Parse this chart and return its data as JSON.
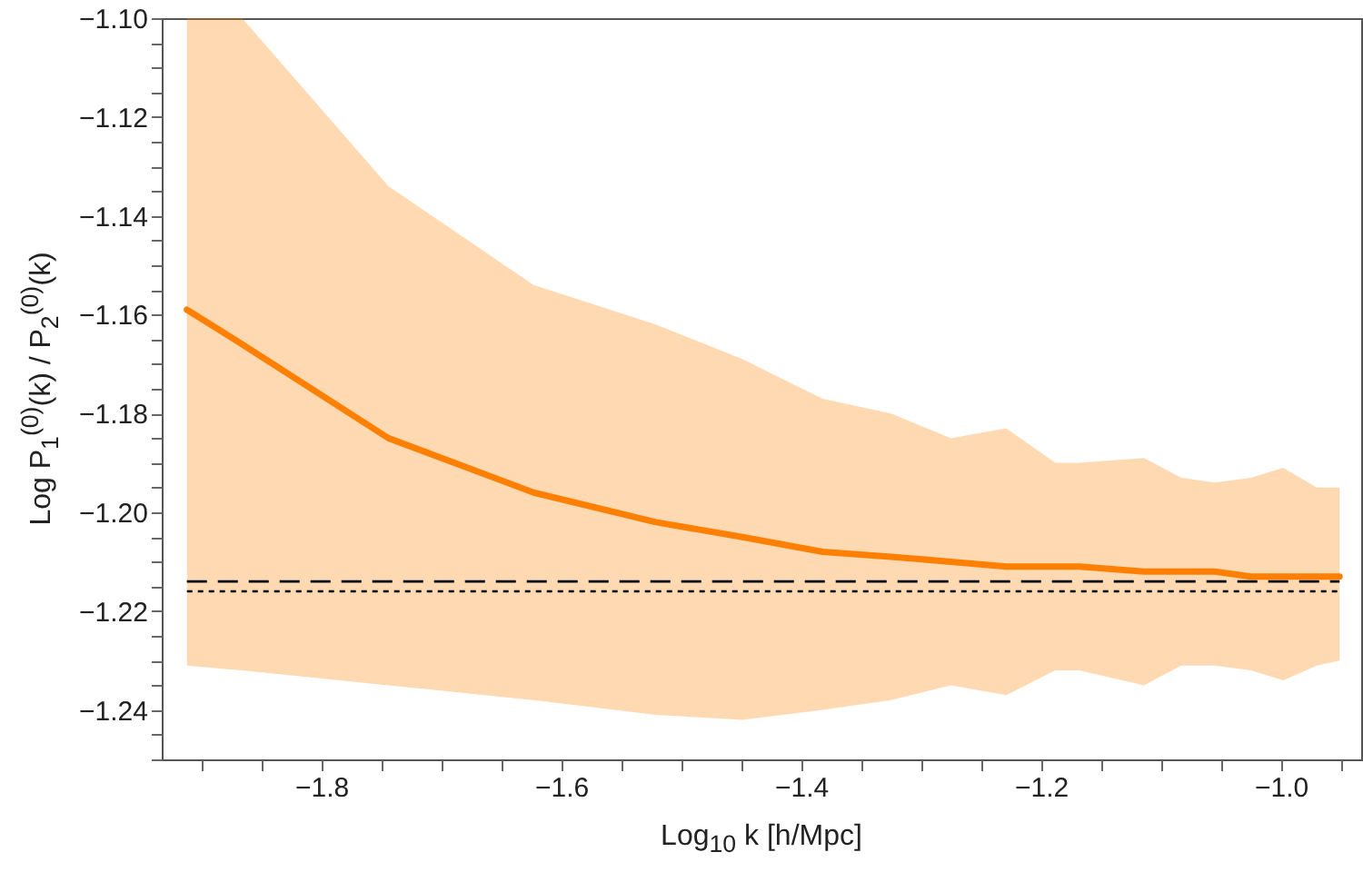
{
  "chart_data": {
    "type": "line",
    "xlabel": "Log$_{10}$ k [h/Mpc]",
    "ylabel": "Log P$_{1}$$^{(0)}$(k) / P$_{2}$$^{(0)}$(k)",
    "xlim": [
      -1.933,
      -0.933
    ],
    "ylim": [
      -1.25,
      -1.1
    ],
    "xticks": [
      {
        "value": -1.9,
        "label": null
      },
      {
        "value": -1.85,
        "label": null
      },
      {
        "value": -1.8,
        "label": "−1.8"
      },
      {
        "value": -1.75,
        "label": null
      },
      {
        "value": -1.7,
        "label": null
      },
      {
        "value": -1.65,
        "label": null
      },
      {
        "value": -1.6,
        "label": "−1.6"
      },
      {
        "value": -1.55,
        "label": null
      },
      {
        "value": -1.5,
        "label": null
      },
      {
        "value": -1.45,
        "label": null
      },
      {
        "value": -1.4,
        "label": "−1.4"
      },
      {
        "value": -1.35,
        "label": null
      },
      {
        "value": -1.3,
        "label": null
      },
      {
        "value": -1.25,
        "label": null
      },
      {
        "value": -1.2,
        "label": "−1.2"
      },
      {
        "value": -1.15,
        "label": null
      },
      {
        "value": -1.1,
        "label": null
      },
      {
        "value": -1.05,
        "label": null
      },
      {
        "value": -1.0,
        "label": "−1.0"
      },
      {
        "value": -0.95,
        "label": null
      }
    ],
    "yticks": [
      {
        "value": -1.1,
        "label": "−1.10"
      },
      {
        "value": -1.105,
        "label": null
      },
      {
        "value": -1.11,
        "label": null
      },
      {
        "value": -1.115,
        "label": null
      },
      {
        "value": -1.12,
        "label": "−1.12"
      },
      {
        "value": -1.125,
        "label": null
      },
      {
        "value": -1.13,
        "label": null
      },
      {
        "value": -1.135,
        "label": null
      },
      {
        "value": -1.14,
        "label": "−1.14"
      },
      {
        "value": -1.145,
        "label": null
      },
      {
        "value": -1.15,
        "label": null
      },
      {
        "value": -1.155,
        "label": null
      },
      {
        "value": -1.16,
        "label": "−1.16"
      },
      {
        "value": -1.165,
        "label": null
      },
      {
        "value": -1.17,
        "label": null
      },
      {
        "value": -1.175,
        "label": null
      },
      {
        "value": -1.18,
        "label": "−1.18"
      },
      {
        "value": -1.185,
        "label": null
      },
      {
        "value": -1.19,
        "label": null
      },
      {
        "value": -1.195,
        "label": null
      },
      {
        "value": -1.2,
        "label": "−1.20"
      },
      {
        "value": -1.205,
        "label": null
      },
      {
        "value": -1.21,
        "label": null
      },
      {
        "value": -1.215,
        "label": null
      },
      {
        "value": -1.22,
        "label": "−1.22"
      },
      {
        "value": -1.225,
        "label": null
      },
      {
        "value": -1.23,
        "label": null
      },
      {
        "value": -1.235,
        "label": null
      },
      {
        "value": -1.24,
        "label": "−1.24"
      },
      {
        "value": -1.245,
        "label": null
      },
      {
        "value": -1.25,
        "label": null
      }
    ],
    "grid": false,
    "marker": "none",
    "series": [
      {
        "type": "line",
        "color": "#ff8000",
        "x": [
          -1.912,
          -1.866,
          -1.744,
          -1.623,
          -1.521,
          -1.449,
          -1.382,
          -1.325,
          -1.275,
          -1.229,
          -1.188,
          -1.168,
          -1.114,
          -1.083,
          -1.055,
          -1.025,
          -0.998,
          -0.97,
          -0.951
        ],
        "values": [
          -1.159,
          -1.166,
          -1.185,
          -1.196,
          -1.202,
          -1.205,
          -1.208,
          -1.209,
          -1.21,
          -1.211,
          -1.211,
          -1.211,
          -1.212,
          -1.212,
          -1.212,
          -1.213,
          -1.213,
          -1.213,
          -1.213
        ],
        "lower": [
          -1.231,
          -1.232,
          -1.235,
          -1.238,
          -1.241,
          -1.242,
          -1.24,
          -1.238,
          -1.235,
          -1.237,
          -1.232,
          -1.232,
          -1.235,
          -1.231,
          -1.231,
          -1.232,
          -1.234,
          -1.231,
          -1.23
        ],
        "upper": [
          -1.1,
          -1.1,
          -1.134,
          -1.154,
          -1.162,
          -1.169,
          -1.177,
          -1.18,
          -1.185,
          -1.183,
          -1.19,
          -1.19,
          -1.189,
          -1.193,
          -1.194,
          -1.193,
          -1.191,
          -1.195,
          -1.195
        ]
      },
      {
        "type": "line",
        "color": "#000000",
        "line_style": "dashed",
        "x": [
          -1.912,
          -0.951
        ],
        "values": [
          -1.214,
          -1.214
        ]
      },
      {
        "type": "line",
        "color": "#000000",
        "line_style": "dotted",
        "x": [
          -1.912,
          -0.951
        ],
        "values": [
          -1.216,
          -1.216
        ]
      }
    ]
  }
}
